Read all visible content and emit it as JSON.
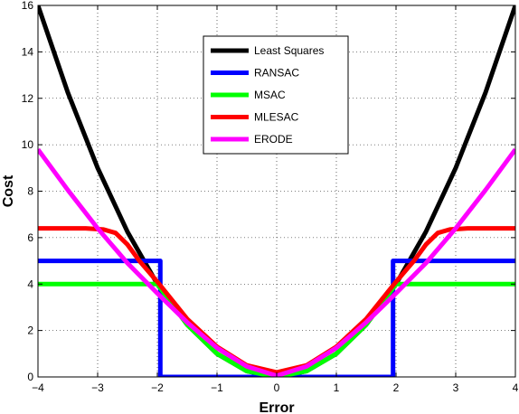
{
  "chart_data": {
    "type": "line",
    "title": "",
    "xlabel": "Error",
    "ylabel": "Cost",
    "xlim": [
      -4,
      4
    ],
    "ylim": [
      0,
      16
    ],
    "x_ticks": [
      "−4",
      "−3",
      "−2",
      "−1",
      "0",
      "1",
      "2",
      "3",
      "4"
    ],
    "y_ticks": [
      "0",
      "2",
      "4",
      "6",
      "8",
      "10",
      "12",
      "14",
      "16"
    ],
    "grid": true,
    "legend_position": "top-center",
    "series": [
      {
        "name": "Least Squares",
        "color": "#000000",
        "x": [
          -4,
          -3.5,
          -3,
          -2.5,
          -2,
          -1.5,
          -1,
          -0.5,
          0,
          0.5,
          1,
          1.5,
          2,
          2.5,
          3,
          3.5,
          4
        ],
        "y": [
          16,
          12.25,
          9,
          6.25,
          4,
          2.25,
          1,
          0.25,
          0,
          0.25,
          1,
          2.25,
          4,
          6.25,
          9,
          12.25,
          16
        ]
      },
      {
        "name": "RANSAC",
        "color": "#0000ff",
        "x": [
          -4,
          -1.95,
          -1.95,
          1.95,
          1.95,
          4
        ],
        "y": [
          5,
          5,
          0,
          0,
          5,
          5
        ]
      },
      {
        "name": "MSAC",
        "color": "#00ff00",
        "x": [
          -4,
          -2,
          -2,
          -1.5,
          -1,
          -0.5,
          0,
          0.5,
          1,
          1.5,
          2,
          2,
          4
        ],
        "y": [
          4,
          4,
          4,
          2.25,
          1,
          0.25,
          0,
          0.25,
          1,
          2.25,
          4,
          4,
          4
        ]
      },
      {
        "name": "MLESAC",
        "color": "#ff0000",
        "x": [
          -4,
          -3.2,
          -2.9,
          -2.7,
          -2.5,
          -2.3,
          -2.0,
          -1.5,
          -1.0,
          -0.5,
          0,
          0.5,
          1.0,
          1.5,
          2.0,
          2.3,
          2.5,
          2.7,
          2.9,
          3.2,
          4
        ],
        "y": [
          6.4,
          6.4,
          6.35,
          6.2,
          5.7,
          5.0,
          4.1,
          2.5,
          1.3,
          0.5,
          0.2,
          0.5,
          1.3,
          2.5,
          4.1,
          5.0,
          5.7,
          6.2,
          6.35,
          6.4,
          6.4
        ]
      },
      {
        "name": "ERODE",
        "color": "#ff00ff",
        "x": [
          -4,
          -3.5,
          -3,
          -2.5,
          -2,
          -1.5,
          -1,
          -0.5,
          0,
          0.5,
          1,
          1.5,
          2,
          2.5,
          3,
          3.5,
          4
        ],
        "y": [
          9.8,
          8.05,
          6.4,
          4.9,
          3.6,
          2.35,
          1.25,
          0.45,
          0.05,
          0.45,
          1.25,
          2.35,
          3.6,
          4.9,
          6.4,
          8.05,
          9.8
        ]
      }
    ]
  }
}
